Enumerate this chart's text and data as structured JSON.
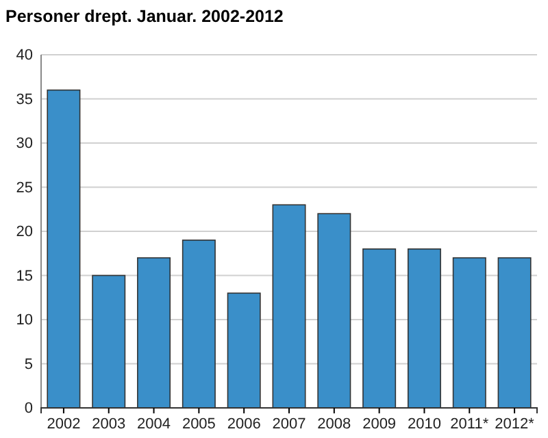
{
  "chart_data": {
    "type": "bar",
    "title": "Personer drept. Januar. 2002-2012",
    "categories": [
      "2002",
      "2003",
      "2004",
      "2005",
      "2006",
      "2007",
      "2008",
      "2009",
      "2010",
      "2011*",
      "2012*"
    ],
    "values": [
      36,
      15,
      17,
      19,
      13,
      23,
      22,
      18,
      18,
      17,
      17
    ],
    "color": "#3a8fc9",
    "ylim": [
      0,
      40
    ],
    "yticks": [
      0,
      5,
      10,
      15,
      20,
      25,
      30,
      35,
      40
    ],
    "grid": "y"
  }
}
